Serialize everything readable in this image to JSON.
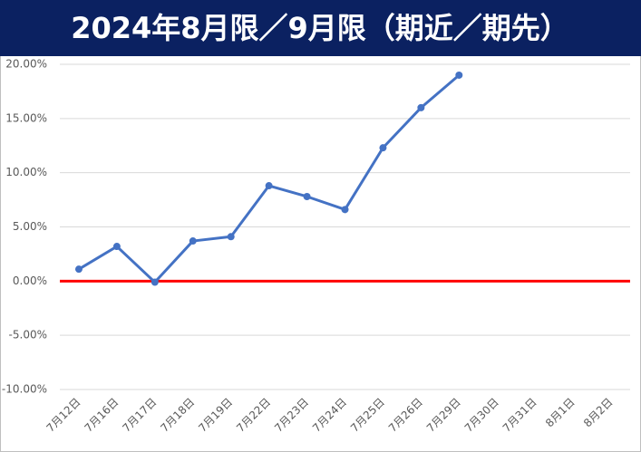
{
  "chart_data": {
    "type": "line",
    "title": "2024年8月限／9月限（期近／期先）",
    "categories": [
      "7月12日",
      "7月16日",
      "7月17日",
      "7月18日",
      "7月19日",
      "7月22日",
      "7月23日",
      "7月24日",
      "7月25日",
      "7月26日",
      "7月29日",
      "7月30日",
      "7月31日",
      "8月1日",
      "8月2日"
    ],
    "values": [
      1.1,
      3.2,
      -0.1,
      3.7,
      4.1,
      8.8,
      7.8,
      6.6,
      12.3,
      16.0,
      19.0,
      null,
      null,
      null,
      null
    ],
    "color": "#4472c4",
    "zero_line_color": "#ff0000",
    "ylim": [
      -10,
      20
    ],
    "yticks": [
      {
        "value": -10,
        "label": "-10.00%"
      },
      {
        "value": -5,
        "label": "-5.00%"
      },
      {
        "value": 0,
        "label": "0.00%"
      },
      {
        "value": 5,
        "label": "5.00%"
      },
      {
        "value": 10,
        "label": "10.00%"
      },
      {
        "value": 15,
        "label": "15.00%"
      },
      {
        "value": 20,
        "label": "20.00%"
      }
    ],
    "grid": true
  }
}
